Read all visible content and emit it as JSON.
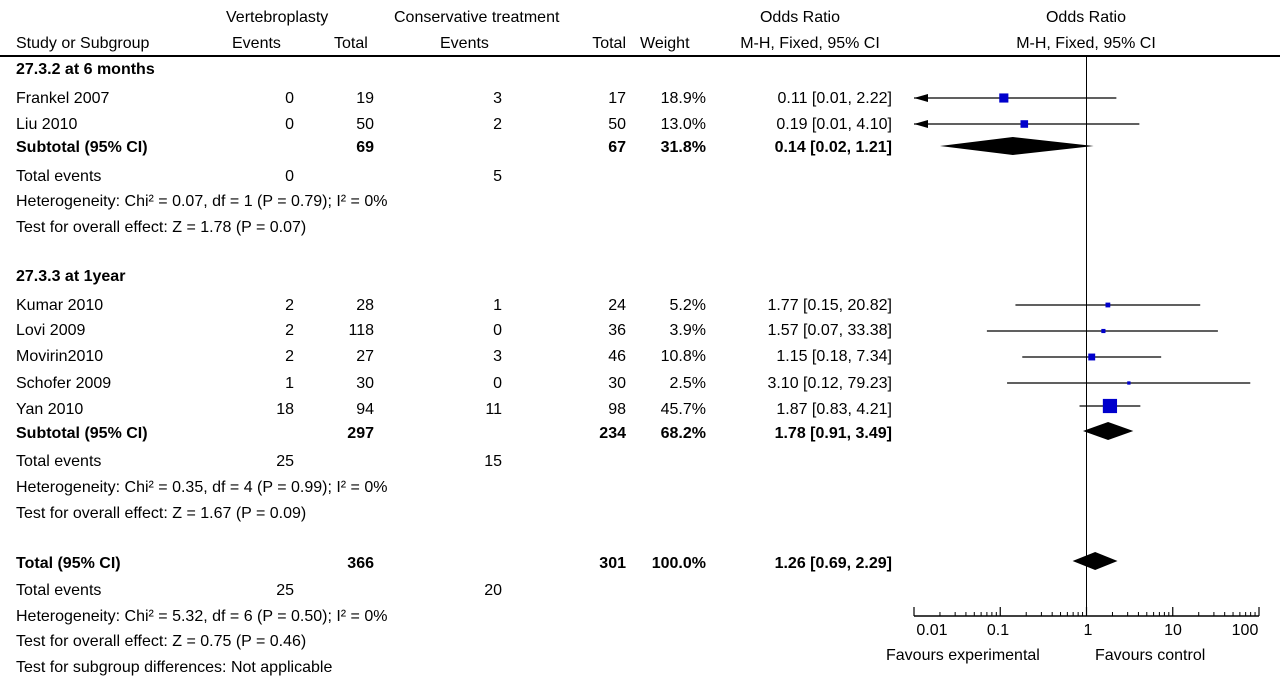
{
  "chart_data": {
    "type": "forest",
    "headers": {
      "group_exp": "Vertebroplasty",
      "group_ctl": "Conservative treatment",
      "or_group": "Odds Ratio",
      "plot_group": "Odds Ratio",
      "study": "Study or Subgroup",
      "events_exp": "Events",
      "total_exp": "Total",
      "events_ctl": "Events",
      "total_ctl": "Total",
      "weight": "Weight",
      "method": "M-H, Fixed, 95% CI",
      "plot_method": "M-H, Fixed, 95% CI"
    },
    "subgroups": [
      {
        "label": "27.3.2 at 6 months",
        "studies": [
          {
            "name": "Frankel 2007",
            "e_exp": "0",
            "t_exp": "19",
            "e_ctl": "3",
            "t_ctl": "17",
            "weight": "18.9%",
            "ci_text": "0.11 [0.01, 2.22]",
            "or": 0.11,
            "lo": 0.01,
            "hi": 2.22,
            "w": 18.9
          },
          {
            "name": "Liu 2010",
            "e_exp": "0",
            "t_exp": "50",
            "e_ctl": "2",
            "t_ctl": "50",
            "weight": "13.0%",
            "ci_text": "0.19 [0.01, 4.10]",
            "or": 0.19,
            "lo": 0.01,
            "hi": 4.1,
            "w": 13.0
          }
        ],
        "subtotal": {
          "label": "Subtotal (95% CI)",
          "t_exp": "69",
          "t_ctl": "67",
          "weight": "31.8%",
          "ci_text": "0.14 [0.02, 1.21]",
          "or": 0.14,
          "lo": 0.02,
          "hi": 1.21
        },
        "total_events": {
          "label": "Total events",
          "exp": "0",
          "ctl": "5"
        },
        "heterogeneity": "Heterogeneity: Chi² = 0.07, df = 1 (P = 0.79); I² = 0%",
        "overall": "Test for overall effect: Z = 1.78 (P = 0.07)"
      },
      {
        "label": "27.3.3 at 1year",
        "studies": [
          {
            "name": "Kumar 2010",
            "e_exp": "2",
            "t_exp": "28",
            "e_ctl": "1",
            "t_ctl": "24",
            "weight": "5.2%",
            "ci_text": "1.77 [0.15, 20.82]",
            "or": 1.77,
            "lo": 0.15,
            "hi": 20.82,
            "w": 5.2
          },
          {
            "name": "Lovi 2009",
            "e_exp": "2",
            "t_exp": "118",
            "e_ctl": "0",
            "t_ctl": "36",
            "weight": "3.9%",
            "ci_text": "1.57 [0.07, 33.38]",
            "or": 1.57,
            "lo": 0.07,
            "hi": 33.38,
            "w": 3.9
          },
          {
            "name": "Movirin2010",
            "e_exp": "2",
            "t_exp": "27",
            "e_ctl": "3",
            "t_ctl": "46",
            "weight": "10.8%",
            "ci_text": "1.15 [0.18, 7.34]",
            "or": 1.15,
            "lo": 0.18,
            "hi": 7.34,
            "w": 10.8
          },
          {
            "name": "Schofer 2009",
            "e_exp": "1",
            "t_exp": "30",
            "e_ctl": "0",
            "t_ctl": "30",
            "weight": "2.5%",
            "ci_text": "3.10 [0.12, 79.23]",
            "or": 3.1,
            "lo": 0.12,
            "hi": 79.23,
            "w": 2.5
          },
          {
            "name": "Yan 2010",
            "e_exp": "18",
            "t_exp": "94",
            "e_ctl": "11",
            "t_ctl": "98",
            "weight": "45.7%",
            "ci_text": "1.87 [0.83, 4.21]",
            "or": 1.87,
            "lo": 0.83,
            "hi": 4.21,
            "w": 45.7
          }
        ],
        "subtotal": {
          "label": "Subtotal (95% CI)",
          "t_exp": "297",
          "t_ctl": "234",
          "weight": "68.2%",
          "ci_text": "1.78 [0.91, 3.49]",
          "or": 1.78,
          "lo": 0.91,
          "hi": 3.49
        },
        "total_events": {
          "label": "Total events",
          "exp": "25",
          "ctl": "15"
        },
        "heterogeneity": "Heterogeneity: Chi² = 0.35, df = 4 (P = 0.99); I² = 0%",
        "overall": "Test for overall effect: Z = 1.67 (P = 0.09)"
      }
    ],
    "total": {
      "label": "Total (95% CI)",
      "t_exp": "366",
      "t_ctl": "301",
      "weight": "100.0%",
      "ci_text": "1.26 [0.69, 2.29]",
      "or": 1.26,
      "lo": 0.69,
      "hi": 2.29
    },
    "total_events": {
      "label": "Total events",
      "exp": "25",
      "ctl": "20"
    },
    "heterogeneity": "Heterogeneity: Chi² = 5.32, df = 6 (P = 0.50); I² = 0%",
    "overall": "Test for overall effect: Z = 0.75 (P = 0.46)",
    "subgroup_diff": "Test for subgroup differences: Not applicable",
    "axis": {
      "scale": "log",
      "range": [
        0.01,
        100
      ],
      "ticks": [
        0.01,
        0.1,
        1,
        10,
        100
      ],
      "tick_labels": [
        "0.01",
        "0.1",
        "1",
        "10",
        "100"
      ],
      "favours_left": "Favours experimental",
      "favours_right": "Favours control"
    },
    "colors": {
      "study_marker": "#0000cc",
      "diamond": "#000000",
      "lines": "#000000"
    }
  }
}
